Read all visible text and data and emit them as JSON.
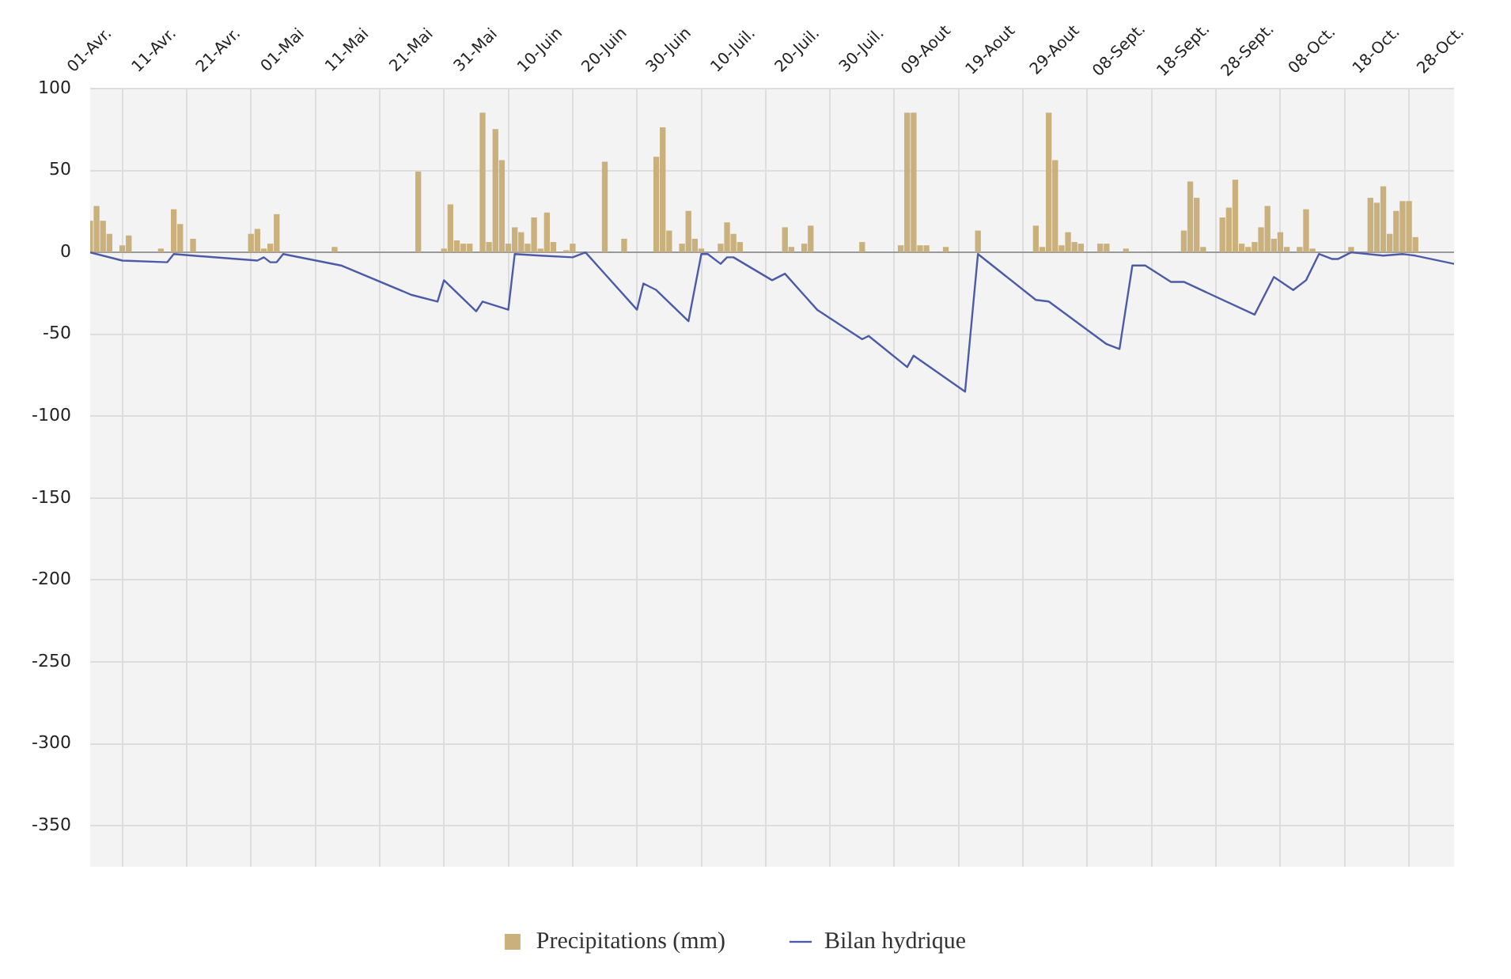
{
  "chart_data": {
    "type": "bar",
    "xlim": [
      "--04-01",
      "--10-30"
    ],
    "xticks": [
      {
        "value": "--04-01",
        "label": "01-Avr."
      },
      {
        "value": "--04-11",
        "label": "11-Avr."
      },
      {
        "value": "--04-21",
        "label": "21-Avr."
      },
      {
        "value": "--05-01",
        "label": "01-Mai"
      },
      {
        "value": "--05-11",
        "label": "11-Mai"
      },
      {
        "value": "--05-21",
        "label": "21-Mai"
      },
      {
        "value": "--05-31",
        "label": "31-Mai"
      },
      {
        "value": "--06-10",
        "label": "10-Juin"
      },
      {
        "value": "--06-20",
        "label": "20-Juin"
      },
      {
        "value": "--06-30",
        "label": "30-Juin"
      },
      {
        "value": "--07-10",
        "label": "10-Juil."
      },
      {
        "value": "--07-20",
        "label": "20-Juil."
      },
      {
        "value": "--07-30",
        "label": "30-Juil."
      },
      {
        "value": "--08-09",
        "label": "09-Aout"
      },
      {
        "value": "--08-19",
        "label": "19-Aout"
      },
      {
        "value": "--08-29",
        "label": "29-Aout"
      },
      {
        "value": "--09-08",
        "label": "08-Sept."
      },
      {
        "value": "--09-18",
        "label": "18-Sept."
      },
      {
        "value": "--09-28",
        "label": "28-Sept."
      },
      {
        "value": "--10-08",
        "label": "08-Oct."
      },
      {
        "value": "--10-18",
        "label": "18-Oct."
      },
      {
        "value": "--10-28",
        "label": "28-Oct."
      }
    ],
    "ylim": [
      -375,
      100
    ],
    "yticks": [
      100,
      50,
      0,
      -50,
      -100,
      -150,
      -200,
      -250,
      -300,
      -350
    ],
    "grid": true,
    "legend": "bottom",
    "series": [
      {
        "name": "Precipitations (mm)",
        "color": "#c9b07c",
        "x": [
          "--04-01",
          "--04-02",
          "--04-03",
          "--04-04",
          "--04-06",
          "--04-07",
          "--04-12",
          "--04-14",
          "--04-15",
          "--04-17",
          "--04-26",
          "--04-27",
          "--04-28",
          "--04-29",
          "--04-30",
          "--05-09",
          "--05-22",
          "--05-26",
          "--05-27",
          "--05-28",
          "--05-29",
          "--05-30",
          "--06-01",
          "--06-02",
          "--06-03",
          "--06-04",
          "--06-05",
          "--06-06",
          "--06-07",
          "--06-08",
          "--06-09",
          "--06-10",
          "--06-11",
          "--06-12",
          "--06-14",
          "--06-15",
          "--06-20",
          "--06-23",
          "--06-28",
          "--06-29",
          "--06-30",
          "--07-02",
          "--07-03",
          "--07-04",
          "--07-05",
          "--07-08",
          "--07-09",
          "--07-10",
          "--07-11",
          "--07-18",
          "--07-19",
          "--07-21",
          "--07-22",
          "--07-30",
          "--08-05",
          "--08-06",
          "--08-07",
          "--08-08",
          "--08-09",
          "--08-12",
          "--08-17",
          "--08-26",
          "--08-27",
          "--08-28",
          "--08-29",
          "--08-30",
          "--08-31",
          "--09-01",
          "--09-02",
          "--09-05",
          "--09-06",
          "--09-09",
          "--09-18",
          "--09-19",
          "--09-20",
          "--09-21",
          "--09-24",
          "--09-25",
          "--09-26",
          "--09-27",
          "--09-28",
          "--09-29",
          "--09-30",
          "--10-01",
          "--10-02",
          "--10-03",
          "--10-04",
          "--10-06",
          "--10-07",
          "--10-08",
          "--10-14",
          "--10-17",
          "--10-18",
          "--10-19",
          "--10-20",
          "--10-21",
          "--10-22",
          "--10-23",
          "--10-24"
        ],
        "values": [
          19,
          28,
          19,
          11,
          4,
          10,
          2,
          26,
          17,
          8,
          11,
          14,
          2,
          5,
          23,
          3,
          49,
          2,
          29,
          7,
          5,
          5,
          85,
          6,
          75,
          56,
          5,
          15,
          12,
          5,
          21,
          2,
          24,
          6,
          1,
          5,
          55,
          8,
          58,
          76,
          13,
          5,
          25,
          8,
          2,
          5,
          18,
          11,
          6,
          15,
          3,
          5,
          16,
          6,
          4,
          85,
          85,
          4,
          4,
          3,
          13,
          16,
          3,
          85,
          56,
          4,
          12,
          6,
          5,
          5,
          5,
          2,
          13,
          43,
          33,
          3,
          21,
          27,
          44,
          5,
          3,
          6,
          15,
          28,
          8,
          12,
          3,
          3,
          26,
          2,
          3,
          33,
          30,
          40,
          11,
          25,
          31,
          31,
          9
        ]
      },
      {
        "name": "Bilan hydrique",
        "type": "line",
        "color": "#4b5ba8",
        "x": [
          "--04-01",
          "--04-06",
          "--04-13",
          "--04-14",
          "--04-17",
          "--04-27",
          "--04-28",
          "--04-29",
          "--04-30",
          "--05-01",
          "--05-10",
          "--05-21",
          "--05-25",
          "--05-26",
          "--05-31",
          "--06-01",
          "--06-05",
          "--06-06",
          "--06-10",
          "--06-15",
          "--06-17",
          "--06-25",
          "--06-26",
          "--06-28",
          "--07-03",
          "--07-05",
          "--07-06",
          "--07-08",
          "--07-09",
          "--07-10",
          "--07-16",
          "--07-18",
          "--07-23",
          "--07-30",
          "--07-31",
          "--08-06",
          "--08-07",
          "--08-15",
          "--08-17",
          "--08-26",
          "--08-28",
          "--09-06",
          "--09-08",
          "--09-10",
          "--09-12",
          "--09-16",
          "--09-18",
          "--09-29",
          "--10-02",
          "--10-05",
          "--10-07",
          "--10-09",
          "--10-11",
          "--10-12",
          "--10-14",
          "--10-19",
          "--10-22",
          "--10-24",
          "--10-30"
        ],
        "values": [
          0,
          -5,
          -6,
          -1,
          -2,
          -5,
          -3,
          -6,
          -6,
          -1,
          -8,
          -26,
          -30,
          -17,
          -36,
          -30,
          -35,
          -1,
          -2,
          -3,
          0,
          -35,
          -19,
          -23,
          -42,
          -1,
          -1,
          -7,
          -3,
          -3,
          -17,
          -13,
          -35,
          -53,
          -51,
          -70,
          -63,
          -85,
          -1,
          -29,
          -30,
          -56,
          -59,
          -8,
          -8,
          -18,
          -18,
          -38,
          -15,
          -23,
          -17,
          -1,
          -4,
          -4,
          0,
          -2,
          -1,
          -2,
          -7
        ]
      }
    ]
  }
}
